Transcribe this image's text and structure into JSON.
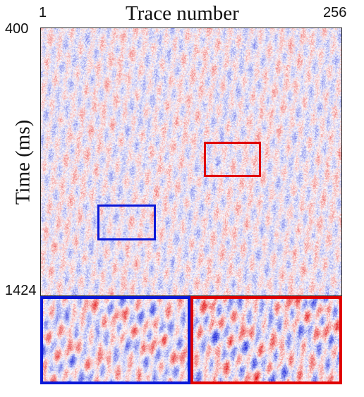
{
  "figure": {
    "x_axis": {
      "title": "Trace number",
      "start_label": "1",
      "end_label": "256"
    },
    "y_axis": {
      "title": "Time (ms)",
      "top_label": "400",
      "bottom_label": "1424"
    },
    "seismic_display": {
      "colormap": "blue-white-red diverging",
      "frame_color": "#222222"
    },
    "highlights": {
      "blue_region_color": "#0b18d8",
      "red_region_color": "#e00000"
    },
    "zoom_panels": {
      "left_color": "#0b18d8",
      "right_color": "#e00000"
    }
  }
}
